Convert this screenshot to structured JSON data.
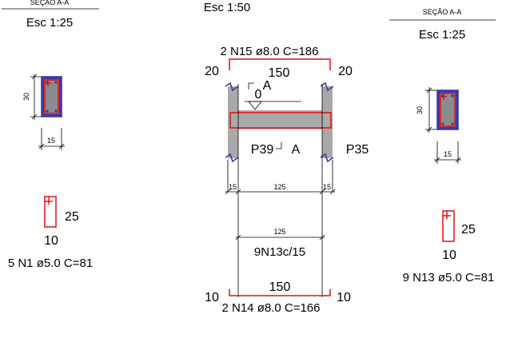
{
  "colors": {
    "concrete": "#a9a9a9",
    "section_fill": "#8c8c8c",
    "rebar": "#e01010",
    "outline": "#3a3aa8",
    "line": "#000000"
  },
  "left_section": {
    "title": "SEÇÃO A-A",
    "scale": "Esc 1:25",
    "dim_height": "30",
    "dim_width": "15"
  },
  "left_stirrup": {
    "dim_height": "25",
    "dim_width": "10",
    "label": "5 N1 ø5.0 C=81"
  },
  "elevation": {
    "scale": "Esc 1:50",
    "top_bar_label": "2 N15 ø8.0 C=186",
    "top_left_hook": "20",
    "top_length": "150",
    "top_right_hook": "20",
    "cut_mark": "A",
    "level": "0",
    "cut_mark_bottom": "A",
    "left_pillar": "P39",
    "right_pillar": "P35",
    "dim_left": "15",
    "dim_span": "125",
    "dim_right": "15",
    "stirrup_span": "125",
    "stirrup_label": "9N13c/15",
    "bottom_left_hook": "10",
    "bottom_length": "150",
    "bottom_right_hook": "10",
    "bottom_bar_label": "2 N14 ø8.0 C=166"
  },
  "right_section": {
    "title": "SEÇÃO A-A",
    "scale": "Esc 1:25",
    "dim_height": "30",
    "dim_width": "15"
  },
  "right_stirrup": {
    "dim_height": "25",
    "dim_width": "10",
    "label": "9 N13 ø5.0 C=81"
  }
}
